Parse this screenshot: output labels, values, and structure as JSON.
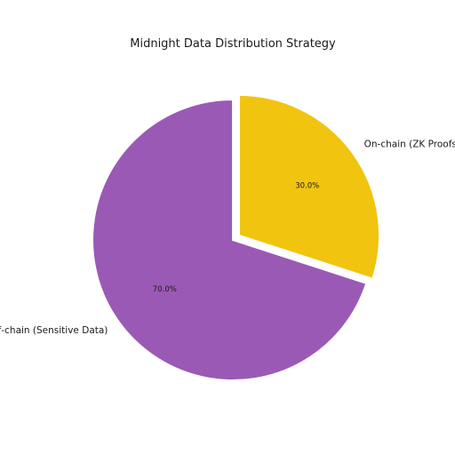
{
  "chart_data": {
    "type": "pie",
    "title": "Midnight Data Distribution Strategy",
    "slices": [
      {
        "name": "On-chain (ZK Proofs/Metadata)",
        "value": 30.0,
        "pct_label": "30.0%",
        "color": "#F1C40F",
        "exploded": true
      },
      {
        "name": "Off-chain (Sensitive Data)",
        "value": 70.0,
        "pct_label": "70.0%",
        "color": "#9B59B6",
        "exploded": false
      }
    ],
    "start_angle_deg": 90,
    "direction": "clockwise",
    "legend": false
  }
}
